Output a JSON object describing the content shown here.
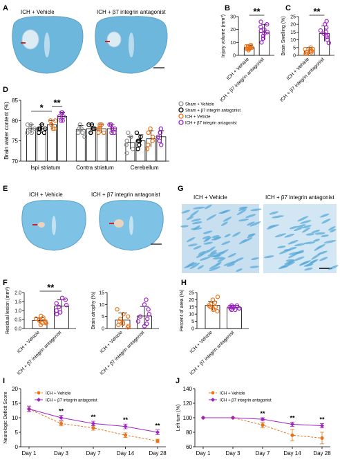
{
  "colors": {
    "orange": "#E8731A",
    "purple": "#A020C8",
    "gray": "#909090",
    "black": "#000000",
    "stain_bg": "#c8dff0",
    "stain_blue": "#5aa9d8"
  },
  "panels": {
    "A": "A",
    "B": "B",
    "C": "C",
    "D": "D",
    "E": "E",
    "F": "F",
    "G": "G",
    "H": "H",
    "I": "I",
    "J": "J"
  },
  "labels": {
    "veh": "ICH + Vehicle",
    "ant": "ICH + β7 integrin antagonist",
    "sham_veh": "Sham + Vehicle",
    "sham_ant": "Sham + β7 integrin antagonist"
  },
  "chart_data": [
    {
      "panel": "B",
      "type": "scatter-bar",
      "ylabel": "Injury volume (mm³)",
      "ylim": [
        0,
        30
      ],
      "yticks": [
        0,
        10,
        20,
        30
      ],
      "categories": [
        "ICH + Vehicle",
        "ICH + β7 integrin antagonist"
      ],
      "means": [
        6,
        18
      ],
      "sd": [
        2,
        6
      ],
      "points": [
        [
          5,
          6,
          7,
          5,
          6,
          8,
          4,
          6,
          7,
          5
        ],
        [
          10,
          13,
          15,
          18,
          20,
          22,
          24,
          26,
          17,
          19
        ]
      ],
      "significance": "**"
    },
    {
      "panel": "C",
      "type": "scatter-bar",
      "ylabel": "Brain Swelling (%)",
      "ylim": [
        0,
        25
      ],
      "yticks": [
        0,
        5,
        10,
        15,
        20,
        25
      ],
      "categories": [
        "ICH + Vehicle",
        "ICH + β7 integrin antagonist"
      ],
      "means": [
        3,
        14
      ],
      "sd": [
        2,
        5
      ],
      "points": [
        [
          1,
          2,
          3,
          4,
          3,
          5,
          2,
          3,
          1,
          4
        ],
        [
          8,
          10,
          12,
          14,
          16,
          18,
          20,
          22,
          13,
          15
        ]
      ],
      "significance": "**"
    },
    {
      "panel": "D",
      "type": "grouped-scatter-bar",
      "ylabel": "Brain water content (%)",
      "ylim": [
        70,
        85
      ],
      "yticks": [
        70,
        75,
        80,
        85
      ],
      "categories": [
        "Ispi striatum",
        "Contra striatum",
        "Cerebellum"
      ],
      "series": [
        {
          "name": "Sham + Vehicle",
          "means": [
            78,
            77.8,
            74.5
          ],
          "sd": [
            1,
            1,
            1.5
          ],
          "points": [
            [
              77,
              78,
              79,
              77,
              78,
              79
            ],
            [
              77,
              78,
              79,
              77,
              78,
              76
            ],
            [
              73,
              74,
              75,
              72,
              76,
              77
            ]
          ]
        },
        {
          "name": "Sham + β7 integrin antagonist",
          "means": [
            78,
            78,
            75
          ],
          "sd": [
            1,
            1,
            1.5
          ],
          "points": [
            [
              77,
              78,
              79,
              78,
              77,
              78
            ],
            [
              77,
              78,
              79,
              78,
              77,
              79
            ],
            [
              74,
              75,
              76,
              73,
              77,
              75
            ]
          ]
        },
        {
          "name": "ICH + Vehicle",
          "means": [
            79,
            78,
            75.5
          ],
          "sd": [
            1,
            1,
            2
          ],
          "points": [
            [
              78,
              79,
              80,
              79,
              78,
              80
            ],
            [
              77,
              78,
              79,
              77,
              78,
              79
            ],
            [
              74,
              75,
              77,
              73,
              76,
              78
            ]
          ]
        },
        {
          "name": "ICH + β7 integrin antagonist",
          "means": [
            81,
            78,
            76
          ],
          "sd": [
            1,
            1,
            1.5
          ],
          "points": [
            [
              80,
              81,
              82,
              81,
              80,
              82
            ],
            [
              77,
              78,
              79,
              78,
              77,
              79
            ],
            [
              75,
              76,
              77,
              74,
              77,
              78
            ]
          ]
        }
      ],
      "significance": [
        "*",
        "**"
      ]
    },
    {
      "panel": "F1",
      "type": "scatter-bar",
      "ylabel": "Residual lesion (mm³)",
      "ylim": [
        0,
        2.0
      ],
      "yticks": [
        "0.0",
        "0.5",
        "1.0",
        "1.5",
        "2.0"
      ],
      "categories": [
        "ICH + Vehicle",
        "ICH + β7 integrin antagonist"
      ],
      "means": [
        0.45,
        1.25
      ],
      "sd": [
        0.15,
        0.35
      ],
      "points": [
        [
          0.2,
          0.3,
          0.4,
          0.5,
          0.6,
          0.7,
          0.35,
          0.45,
          0.55,
          0.3
        ],
        [
          0.8,
          1.0,
          1.2,
          1.4,
          1.6,
          1.7,
          0.9,
          1.3
        ]
      ],
      "significance": "**"
    },
    {
      "panel": "F2",
      "type": "scatter-bar",
      "ylabel": "Brain atrophy (%)",
      "ylim": [
        0,
        15
      ],
      "yticks": [
        0,
        5,
        10,
        15
      ],
      "categories": [
        "ICH + Vehicle",
        "ICH + β7 integrin antagonist"
      ],
      "means": [
        3.5,
        5.2
      ],
      "sd": [
        3,
        4
      ],
      "points": [
        [
          0.5,
          1,
          2,
          3,
          4,
          5,
          6,
          8,
          2.5,
          1.5
        ],
        [
          1,
          2,
          3,
          4,
          6,
          8,
          10,
          12,
          5
        ]
      ]
    },
    {
      "panel": "H",
      "type": "scatter-bar",
      "ylabel": "Percent of area (%)",
      "ylim": [
        0,
        25
      ],
      "yticks": [
        0,
        5,
        10,
        15,
        20,
        25
      ],
      "categories": [
        "ICH + Vehicle",
        "ICH + β7 integrin antagonist"
      ],
      "means": [
        16,
        14.5
      ],
      "sd": [
        3,
        1.5
      ],
      "points": [
        [
          12,
          14,
          15,
          16,
          17,
          18,
          20,
          22,
          15,
          13
        ],
        [
          13,
          14,
          15,
          16,
          14,
          15,
          13,
          16,
          14,
          15
        ]
      ]
    },
    {
      "panel": "I",
      "type": "line",
      "ylabel": "Neurologic Deficit Score",
      "ylim": [
        0,
        20
      ],
      "yticks": [
        0,
        5,
        10,
        15,
        20
      ],
      "x": [
        "Day 1",
        "Day 3",
        "Day 7",
        "Day 14",
        "Day 28"
      ],
      "series": [
        {
          "name": "ICH + Vehicle",
          "values": [
            13,
            8,
            6.5,
            4,
            2
          ],
          "sd": [
            1,
            0.8,
            0.8,
            0.8,
            0.6
          ]
        },
        {
          "name": "ICH + β7 integrin antagonist",
          "values": [
            13,
            10,
            8,
            7,
            5
          ],
          "sd": [
            1,
            0.8,
            0.8,
            0.8,
            0.8
          ]
        }
      ],
      "significance": [
        "",
        "**",
        "**",
        "**",
        "**"
      ]
    },
    {
      "panel": "J",
      "type": "line",
      "ylabel": "Left turn (%)",
      "ylim": [
        60,
        140
      ],
      "yticks": [
        60,
        80,
        100,
        120,
        140
      ],
      "x": [
        "Day 1",
        "Day 3",
        "Day 7",
        "Day 14",
        "Day 28"
      ],
      "series": [
        {
          "name": "ICH + Vehicle",
          "values": [
            100,
            100,
            90,
            76,
            72
          ],
          "sd": [
            0,
            0,
            4,
            8,
            8
          ]
        },
        {
          "name": "ICH + β7 integrin antagonist",
          "values": [
            100,
            100,
            98,
            91,
            89
          ],
          "sd": [
            0,
            0,
            2,
            3,
            3
          ]
        }
      ],
      "significance": [
        "",
        "",
        "**",
        "**",
        "**"
      ]
    }
  ]
}
